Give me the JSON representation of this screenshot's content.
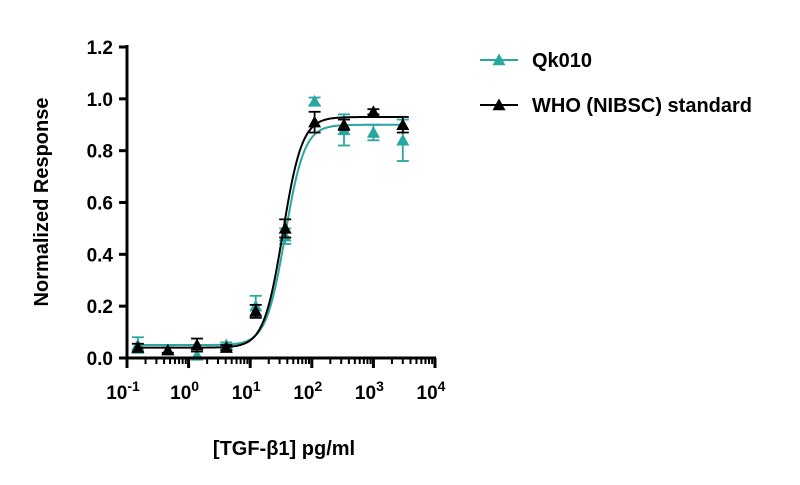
{
  "chart_data": {
    "type": "scatter",
    "title": "",
    "xlabel": "[TGF-β1] pg/ml",
    "ylabel": "Normalized Response",
    "x_scale": "log",
    "xlim": [
      0.1,
      10000
    ],
    "ylim": [
      0,
      1.2
    ],
    "y_ticks": [
      "0.0",
      "0.2",
      "0.4",
      "0.6",
      "0.8",
      "1.0",
      "1.2"
    ],
    "x_ticks": [
      {
        "value": 0.1,
        "base": "10",
        "exp": "-1"
      },
      {
        "value": 1,
        "base": "10",
        "exp": "0"
      },
      {
        "value": 10,
        "base": "10",
        "exp": "1"
      },
      {
        "value": 100,
        "base": "10",
        "exp": "2"
      },
      {
        "value": 1000,
        "base": "10",
        "exp": "3"
      },
      {
        "value": 10000,
        "base": "10",
        "exp": "4"
      }
    ],
    "grid": false,
    "legend_position": "top-right",
    "series": [
      {
        "name": "Qk010",
        "color": "#2aa6a0",
        "marker": "triangle",
        "x": [
          0.15,
          0.46,
          1.37,
          4.1,
          12.3,
          37,
          111,
          333,
          1000,
          3000
        ],
        "y": [
          0.05,
          0.03,
          0.01,
          0.05,
          0.2,
          0.47,
          0.99,
          0.88,
          0.87,
          0.84
        ],
        "error": [
          0.03,
          0.01,
          0.015,
          0.01,
          0.04,
          0.03,
          0.015,
          0.06,
          0.03,
          0.08
        ],
        "fit": {
          "bottom": 0.05,
          "top": 0.9,
          "ec50": 37,
          "hill": 2.8
        }
      },
      {
        "name": "WHO (NIBSC) standard",
        "color": "#000000",
        "marker": "triangle",
        "x": [
          0.15,
          0.46,
          1.37,
          4.1,
          12.3,
          37,
          111,
          333,
          1000,
          3000
        ],
        "y": [
          0.04,
          0.03,
          0.05,
          0.04,
          0.18,
          0.5,
          0.91,
          0.9,
          0.95,
          0.9
        ],
        "error": [
          0.015,
          0.01,
          0.025,
          0.01,
          0.025,
          0.035,
          0.04,
          0.02,
          0.01,
          0.03
        ],
        "fit": {
          "bottom": 0.04,
          "top": 0.93,
          "ec50": 34,
          "hill": 2.8
        }
      }
    ]
  }
}
